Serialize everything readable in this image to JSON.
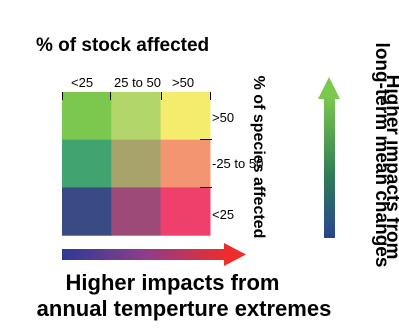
{
  "title": "% of stock affected",
  "columns": [
    "<25",
    "25 to 50",
    ">50"
  ],
  "rows": [
    ">50",
    "-25 to 50",
    "<25"
  ],
  "row_axis_label": "% of species affected",
  "bottom_caption_line1": "Higher impacts from",
  "bottom_caption_line2": "annual temperture extremes",
  "right_caption_line1": "Higher impacts from",
  "right_caption_line2": "long-term mean changes",
  "grid_colors": [
    [
      "#7cc74e",
      "#b3d66a",
      "#f4ec6c"
    ],
    [
      "#41a470",
      "#a7a36b",
      "#f39570"
    ],
    [
      "#3a4a84",
      "#9d4a79",
      "#ee406b"
    ]
  ],
  "colors": {
    "bottom_arrow_start": "#2b3a96",
    "bottom_arrow_end": "#ed2d2d",
    "side_arrow_top": "#7cc74e",
    "side_arrow_bottom": "#27448f"
  }
}
